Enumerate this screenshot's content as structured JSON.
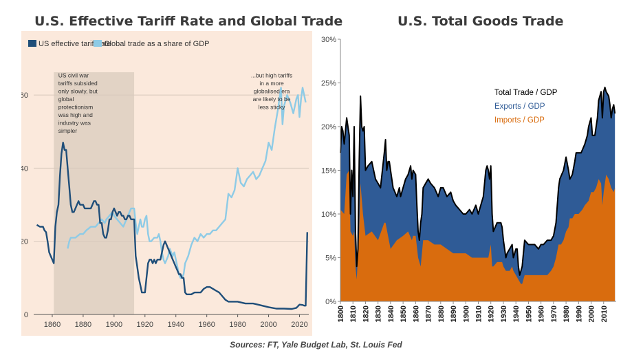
{
  "left_title": "U.S. Effective Tariff Rate and Global Trade",
  "right_title": "U.S. Total Goods Trade",
  "source": "Sources: FT, Yale Budget Lab, St. Louis Fed",
  "chart_data": [
    {
      "type": "line",
      "title": "U.S. Effective Tariff Rate and Global Trade",
      "xlabel": "",
      "ylabel": "",
      "xlim": [
        1848,
        2026
      ],
      "ylim": [
        0,
        70
      ],
      "x_ticks": [
        "1860",
        "1880",
        "1900",
        "1920",
        "1940",
        "1960",
        "1980",
        "2000",
        "2020"
      ],
      "y_ticks": [
        "0",
        "20",
        "40",
        "60"
      ],
      "grid": true,
      "legend_position": "top-left",
      "colors": {
        "tariff": "#1f4e79",
        "trade": "#8ecbe6",
        "shade": "#e2d3c5",
        "bg": "#fbe9dc"
      },
      "shaded_period": [
        1861,
        1913
      ],
      "annotations": [
        {
          "x": 1863,
          "y": 65,
          "lines": [
            "US civil war",
            "tariffs subsided",
            "only slowly, but",
            "global",
            "protectionism",
            "was high and",
            "industry was",
            "simpler"
          ]
        },
        {
          "x": 2002,
          "y": 65,
          "lines": [
            "...but high tariffs",
            "in a more",
            "globalised era",
            "are likely to be",
            "less sticky"
          ]
        }
      ],
      "series": [
        {
          "name": "US effective tariff rate",
          "x": [
            1850,
            1852,
            1854,
            1855,
            1856,
            1857,
            1858,
            1859,
            1860,
            1861,
            1862,
            1863,
            1864,
            1865,
            1866,
            1867,
            1868,
            1869,
            1870,
            1871,
            1872,
            1873,
            1874,
            1875,
            1876,
            1877,
            1878,
            1879,
            1880,
            1881,
            1882,
            1883,
            1884,
            1885,
            1886,
            1887,
            1888,
            1889,
            1890,
            1891,
            1892,
            1893,
            1894,
            1895,
            1896,
            1897,
            1898,
            1899,
            1900,
            1901,
            1902,
            1903,
            1904,
            1905,
            1906,
            1907,
            1908,
            1909,
            1910,
            1911,
            1912,
            1913,
            1914,
            1915,
            1916,
            1917,
            1918,
            1919,
            1920,
            1921,
            1922,
            1923,
            1924,
            1925,
            1926,
            1927,
            1928,
            1929,
            1930,
            1931,
            1932,
            1933,
            1934,
            1935,
            1936,
            1937,
            1938,
            1939,
            1940,
            1941,
            1942,
            1943,
            1944,
            1945,
            1946,
            1947,
            1948,
            1950,
            1952,
            1954,
            1956,
            1958,
            1960,
            1962,
            1964,
            1966,
            1968,
            1970,
            1972,
            1974,
            1976,
            1978,
            1980,
            1985,
            1990,
            1995,
            2000,
            2005,
            2010,
            2015,
            2018,
            2020,
            2022,
            2023,
            2024,
            2025
          ],
          "values": [
            24.5,
            24,
            24,
            23,
            22.5,
            20,
            17,
            16,
            15,
            14,
            24,
            28,
            30,
            38,
            44,
            47,
            45,
            45,
            40,
            35,
            30,
            28,
            28,
            29,
            30,
            31,
            30,
            30,
            30,
            29,
            29,
            29,
            29,
            29,
            30,
            31,
            31,
            30,
            30,
            25,
            25,
            22,
            21,
            21,
            23,
            26,
            26,
            28,
            29,
            28,
            27,
            28,
            28,
            27,
            27,
            26,
            26,
            27,
            27,
            26,
            26,
            26,
            16,
            13,
            10,
            8,
            6,
            6,
            6,
            10,
            14,
            15,
            15,
            14,
            15,
            14,
            15,
            15,
            15,
            17,
            19,
            20,
            19,
            18,
            17,
            16,
            15,
            14,
            13,
            12,
            11,
            11,
            10,
            10,
            6,
            5.5,
            5.5,
            5.5,
            6,
            6,
            6,
            7,
            7.5,
            7.5,
            7,
            6.5,
            6,
            5,
            4,
            3.5,
            3.5,
            3.5,
            3.5,
            3,
            3,
            2.5,
            2,
            1.6,
            1.6,
            1.5,
            1.8,
            2.7,
            2.6,
            2.4,
            2.4,
            22.5
          ]
        },
        {
          "name": "Global trade as a share of GDP",
          "x": [
            1870,
            1871,
            1872,
            1875,
            1878,
            1880,
            1882,
            1885,
            1888,
            1890,
            1892,
            1894,
            1895,
            1897,
            1899,
            1900,
            1902,
            1904,
            1906,
            1908,
            1909,
            1910,
            1911,
            1912,
            1913,
            1914,
            1915,
            1916,
            1917,
            1918,
            1919,
            1920,
            1921,
            1922,
            1923,
            1924,
            1926,
            1928,
            1929,
            1930,
            1931,
            1932,
            1933,
            1934,
            1935,
            1936,
            1937,
            1938,
            1939,
            1940,
            1941,
            1942,
            1943,
            1944,
            1945,
            1946,
            1947,
            1948,
            1950,
            1952,
            1954,
            1956,
            1958,
            1960,
            1962,
            1964,
            1966,
            1968,
            1970,
            1972,
            1974,
            1976,
            1978,
            1980,
            1982,
            1984,
            1986,
            1988,
            1990,
            1992,
            1994,
            1996,
            1998,
            2000,
            2002,
            2004,
            2006,
            2008,
            2009,
            2010,
            2012,
            2014,
            2016,
            2018,
            2019,
            2020,
            2021,
            2022,
            2023,
            2024
          ],
          "values": [
            18,
            20,
            21,
            21,
            22,
            22,
            23,
            24,
            24,
            25,
            26,
            25,
            26,
            27,
            28,
            27,
            26,
            25,
            24,
            26,
            27,
            28,
            29,
            29,
            29,
            25,
            22,
            24,
            26,
            24,
            24,
            26,
            27,
            22,
            20,
            20,
            21,
            21,
            22,
            20,
            17,
            15,
            14,
            15,
            16,
            18,
            17,
            16,
            17,
            15,
            13,
            11,
            10,
            10,
            11,
            14,
            15,
            16,
            19,
            21,
            20,
            22,
            21,
            22,
            22,
            23,
            23,
            24,
            25,
            26,
            33,
            32,
            34,
            40,
            36,
            35,
            37,
            38,
            39,
            37,
            38,
            40,
            42,
            47,
            45,
            51,
            56,
            62,
            52,
            57,
            60,
            58,
            55,
            59,
            60,
            54,
            59,
            62,
            60,
            58
          ]
        }
      ]
    },
    {
      "type": "area",
      "title": "U.S. Total Goods Trade",
      "xlabel": "",
      "ylabel": "",
      "xlim": [
        1800,
        2020
      ],
      "ylim": [
        0,
        30
      ],
      "x_ticks": [
        "1800",
        "1810",
        "1820",
        "1830",
        "1840",
        "1850",
        "1860",
        "1870",
        "1880",
        "1890",
        "1900",
        "1910",
        "1920",
        "1930",
        "1940",
        "1950",
        "1960",
        "1970",
        "1980",
        "1990",
        "2000",
        "2010"
      ],
      "y_ticks": [
        "0%",
        "5%",
        "10%",
        "15%",
        "20%",
        "25%",
        "30%"
      ],
      "grid": false,
      "legend_position": "top-center",
      "colors": {
        "total": "#000000",
        "exports": "#2f5b96",
        "imports": "#d96c0e",
        "exports_text": "#2f5b96",
        "imports_text": "#d96c0e"
      },
      "legend": [
        "Total Trade / GDP",
        "Exports / GDP",
        "Imports / GDP"
      ],
      "series": [
        {
          "name": "Total Trade / GDP",
          "x": [
            1800,
            1801,
            1802,
            1803,
            1805,
            1807,
            1808,
            1809,
            1810,
            1811,
            1812,
            1813,
            1814,
            1815,
            1816,
            1817,
            1818,
            1819,
            1820,
            1822,
            1825,
            1828,
            1830,
            1832,
            1835,
            1836,
            1837,
            1838,
            1839,
            1840,
            1842,
            1845,
            1847,
            1848,
            1850,
            1852,
            1854,
            1856,
            1857,
            1858,
            1860,
            1861,
            1862,
            1863,
            1864,
            1865,
            1866,
            1868,
            1870,
            1872,
            1875,
            1878,
            1880,
            1882,
            1885,
            1888,
            1890,
            1892,
            1895,
            1898,
            1900,
            1903,
            1905,
            1908,
            1910,
            1912,
            1914,
            1916,
            1917,
            1918,
            1919,
            1920,
            1921,
            1922,
            1925,
            1928,
            1929,
            1930,
            1931,
            1932,
            1933,
            1935,
            1937,
            1938,
            1940,
            1941,
            1942,
            1943,
            1944,
            1945,
            1947,
            1950,
            1952,
            1955,
            1958,
            1960,
            1962,
            1965,
            1968,
            1970,
            1972,
            1974,
            1975,
            1978,
            1980,
            1982,
            1983,
            1985,
            1987,
            1988,
            1990,
            1992,
            1995,
            1997,
            1998,
            2000,
            2001,
            2002,
            2003,
            2005,
            2006,
            2008,
            2009,
            2010,
            2011,
            2012,
            2014,
            2015,
            2016,
            2017,
            2018,
            2019
          ],
          "values": [
            17,
            20,
            19.5,
            18,
            21,
            19,
            10,
            15,
            12,
            20,
            8,
            4,
            6,
            16,
            23.5,
            20,
            19.5,
            20,
            15,
            15.5,
            16,
            14,
            13.5,
            13,
            17,
            18.5,
            15,
            16,
            16,
            15,
            13,
            12,
            13,
            12,
            13,
            14,
            14.5,
            15.5,
            14,
            15,
            14.5,
            11,
            8,
            7,
            9,
            10,
            13,
            13.5,
            14,
            13.5,
            13,
            12,
            13,
            13,
            12,
            12.5,
            11.5,
            11,
            10.5,
            10,
            10,
            10.5,
            10,
            11,
            10,
            11,
            12,
            15,
            15.5,
            15,
            14,
            15.5,
            10,
            8,
            9,
            9,
            8.5,
            7,
            6,
            5,
            5.5,
            6,
            6.5,
            5,
            6,
            6,
            4,
            3,
            3.5,
            4,
            7,
            6.5,
            6.5,
            6.5,
            6,
            6.5,
            6.5,
            7,
            7,
            7.5,
            9,
            13,
            14,
            15,
            16.5,
            15,
            14,
            14.5,
            16,
            17,
            17,
            17,
            18,
            19,
            20,
            21,
            19,
            19,
            19,
            21,
            23,
            24,
            21,
            24,
            24.5,
            24,
            23.5,
            22.5,
            21,
            22,
            22.5,
            21.5
          ]
        },
        {
          "name": "Exports / GDP",
          "x": [],
          "values": []
        },
        {
          "name": "Imports / GDP",
          "x": [
            1800,
            1803,
            1805,
            1807,
            1808,
            1810,
            1811,
            1812,
            1813,
            1815,
            1816,
            1818,
            1820,
            1825,
            1830,
            1835,
            1836,
            1840,
            1845,
            1850,
            1854,
            1857,
            1858,
            1860,
            1862,
            1864,
            1866,
            1870,
            1875,
            1880,
            1885,
            1890,
            1895,
            1900,
            1905,
            1910,
            1914,
            1916,
            1918,
            1920,
            1921,
            1922,
            1925,
            1929,
            1930,
            1932,
            1935,
            1937,
            1938,
            1940,
            1942,
            1944,
            1945,
            1947,
            1950,
            1955,
            1960,
            1965,
            1968,
            1970,
            1972,
            1974,
            1976,
            1978,
            1980,
            1982,
            1983,
            1985,
            1987,
            1990,
            1993,
            1995,
            1998,
            2000,
            2002,
            2004,
            2006,
            2008,
            2009,
            2010,
            2012,
            2014,
            2016,
            2018,
            2019
          ],
          "values": [
            10.5,
            10,
            14.5,
            15,
            8,
            7.5,
            8,
            4,
            2.5,
            8,
            13.5,
            10,
            7.5,
            8,
            7,
            9,
            9,
            6,
            7,
            7.5,
            8,
            7,
            7.5,
            7.5,
            5,
            4,
            7,
            7,
            6.5,
            6.5,
            6,
            5.5,
            5.5,
            5.5,
            5,
            5,
            5,
            5,
            5,
            6.5,
            4,
            4,
            4.5,
            4.5,
            4,
            3.5,
            3.5,
            4,
            3.5,
            3,
            2.5,
            2,
            2,
            3,
            3,
            3,
            3,
            3,
            3.5,
            4,
            5,
            6.5,
            6.5,
            7,
            8,
            8.5,
            9.5,
            9.5,
            10,
            10,
            10.5,
            11,
            11.5,
            12.5,
            12.5,
            13,
            14,
            13.5,
            11,
            12.5,
            14.5,
            14,
            13,
            12.5,
            13
          ]
        }
      ]
    }
  ]
}
